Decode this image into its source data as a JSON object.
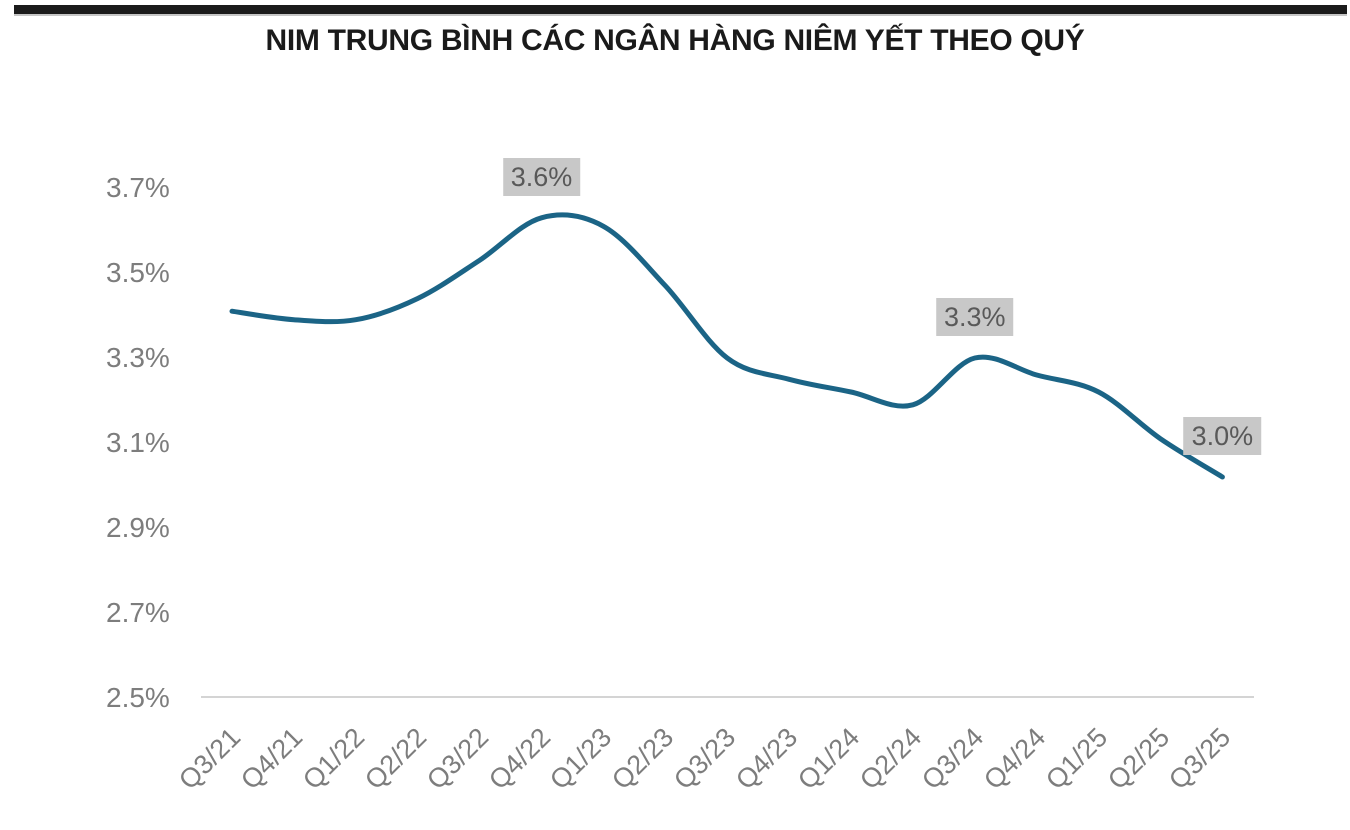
{
  "header": {
    "top_bar_color": "#1b1b1b",
    "title": "NIM TRUNG BÌNH CÁC NGÂN HÀNG NIÊM YẾT THEO QUÝ"
  },
  "chart_data": {
    "type": "line",
    "title": "NIM TRUNG BÌNH CÁC NGÂN HÀNG NIÊM YẾT THEO QUÝ",
    "categories": [
      "Q3/21",
      "Q4/21",
      "Q1/22",
      "Q2/22",
      "Q3/22",
      "Q4/22",
      "Q1/23",
      "Q2/23",
      "Q3/23",
      "Q4/23",
      "Q1/24",
      "Q2/24",
      "Q3/24",
      "Q4/24",
      "Q1/25",
      "Q2/25",
      "Q3/25"
    ],
    "series": [
      {
        "name": "NIM trung bình",
        "values": [
          3.41,
          3.39,
          3.39,
          3.44,
          3.53,
          3.63,
          3.61,
          3.47,
          3.3,
          3.25,
          3.22,
          3.19,
          3.3,
          3.26,
          3.22,
          3.11,
          3.02
        ]
      }
    ],
    "y_ticks": [
      {
        "value": 3.7,
        "label": "3.7%"
      },
      {
        "value": 3.5,
        "label": "3.5%"
      },
      {
        "value": 3.3,
        "label": "3.3%"
      },
      {
        "value": 3.1,
        "label": "3.1%"
      },
      {
        "value": 2.9,
        "label": "2.9%"
      },
      {
        "value": 2.7,
        "label": "2.7%"
      },
      {
        "value": 2.5,
        "label": "2.5%"
      }
    ],
    "ylim": [
      2.5,
      3.78
    ],
    "grid": false,
    "legend": "none",
    "smooth": true,
    "annotations": [
      {
        "category": "Q4/22",
        "index": 5,
        "label": "3.6%"
      },
      {
        "category": "Q3/24",
        "index": 12,
        "label": "3.3%"
      },
      {
        "category": "Q3/25",
        "index": 16,
        "label": "3.0%"
      }
    ],
    "colors": {
      "line": "#1b6486",
      "axis_line": "#d4d4d4",
      "tick_label": "#7d7d7d",
      "annotation_bg": "#c8c8c8",
      "annotation_text": "#595959",
      "title_text": "#1a1a1a"
    }
  }
}
